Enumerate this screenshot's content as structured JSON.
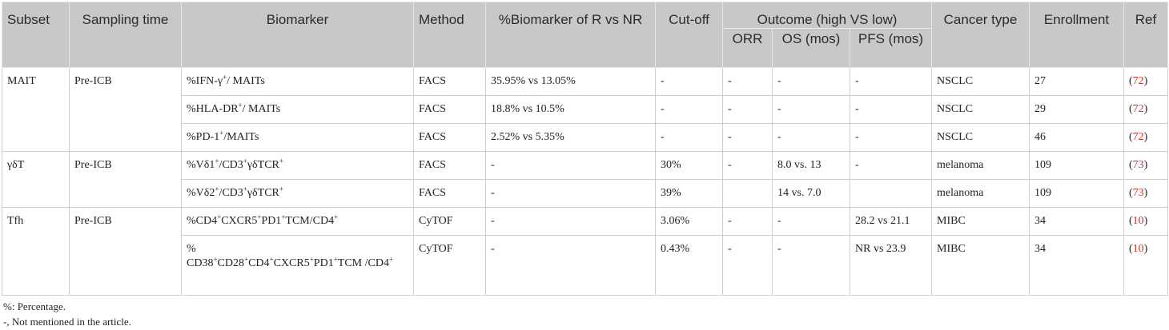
{
  "header": {
    "subset": "Subset",
    "sampling_time": "Sampling time",
    "biomarker": "Biomarker",
    "method": "Method",
    "pct_biomarker": "%Biomarker of R vs NR",
    "cutoff": "Cut-off",
    "outcome": "Outcome (high VS low)",
    "orr": "ORR",
    "os": "OS (mos)",
    "pfs": "PFS (mos)",
    "cancer_type": "Cancer type",
    "enrollment": "Enrollment",
    "ref": "Ref"
  },
  "rows": [
    {
      "subset": "MAIT",
      "sampling": "Pre-ICB",
      "bio": [
        "%IFN-γ",
        "+",
        "/ MAITs"
      ],
      "method": "FACS",
      "pct": "35.95% vs 13.05%",
      "cutoff": "-",
      "orr": "-",
      "os": "-",
      "pfs": "-",
      "cancer": "NSCLC",
      "enroll": "27",
      "ref": "72"
    },
    {
      "subset": "",
      "sampling": "",
      "bio": [
        "%HLA-DR",
        "+",
        "/ MAITs"
      ],
      "method": "FACS",
      "pct": "18.8% vs 10.5%",
      "cutoff": "-",
      "orr": "-",
      "os": "-",
      "pfs": "-",
      "cancer": "NSCLC",
      "enroll": "29",
      "ref": "72"
    },
    {
      "subset": "",
      "sampling": "",
      "bio": [
        "%PD-1",
        "+",
        "/MAITs"
      ],
      "method": "FACS",
      "pct": "2.52% vs 5.35%",
      "cutoff": "-",
      "orr": "-",
      "os": "-",
      "pfs": "-",
      "cancer": "NSCLC",
      "enroll": "46",
      "ref": "72"
    },
    {
      "subset": "γδT",
      "sampling": "Pre-ICB",
      "bio": [
        "%Vδ1",
        "+",
        "/CD3",
        "+",
        "γδTCR",
        "+"
      ],
      "method": "FACS",
      "pct": "-",
      "cutoff": "30%",
      "orr": "-",
      "os": "8.0 vs. 13",
      "pfs": "-",
      "cancer": "melanoma",
      "enroll": "109",
      "ref": "73"
    },
    {
      "subset": "",
      "sampling": "",
      "bio": [
        "%Vδ2",
        "+",
        "/CD3",
        "+",
        "γδTCR",
        "+"
      ],
      "method": "FACS",
      "pct": "-",
      "cutoff": "39%",
      "orr": "",
      "os": "14 vs. 7.0",
      "pfs": "",
      "cancer": "melanoma",
      "enroll": "109",
      "ref": "73"
    },
    {
      "subset": "Tfh",
      "sampling": "Pre-ICB",
      "bio": [
        "%CD4",
        "+",
        "CXCR5",
        "+",
        "PD1",
        "+",
        "TCM/CD4",
        "+"
      ],
      "method": "CyTOF",
      "pct": "-",
      "cutoff": "3.06%",
      "orr": "-",
      "os": "-",
      "pfs": "28.2 vs 21.1",
      "cancer": "MIBC",
      "enroll": "34",
      "ref": "10"
    },
    {
      "subset": "",
      "sampling": "",
      "bio": [
        "%",
        "",
        " CD38",
        "+",
        "CD28",
        "+",
        "CD4",
        "+",
        "CXCR5",
        "+",
        "PD1",
        "+",
        "TCM /CD4",
        "+"
      ],
      "method": "CyTOF",
      "pct": "-",
      "cutoff": "0.43%",
      "orr": "-",
      "os": "-",
      "pfs": "NR vs 23.9",
      "cancer": "MIBC",
      "enroll": "34",
      "ref": "10"
    }
  ],
  "footnotes": {
    "line1": "%: Percentage.",
    "line2": "-, Not mentioned in the article."
  },
  "colors": {
    "header_bg": "#c8c8c8",
    "ref_number": "#c0392b"
  }
}
